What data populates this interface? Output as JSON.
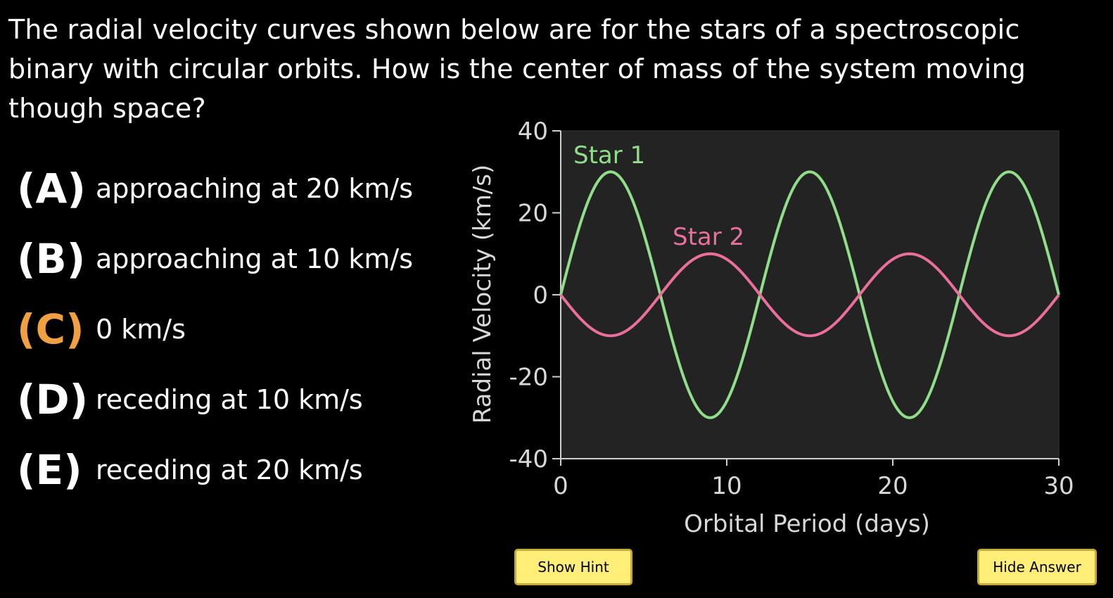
{
  "question": "The radial velocity curves shown below are for the stars of a spectroscopic binary with circular orbits. How is the center of mass of the system moving though space?",
  "choices": [
    {
      "letter": "(A)",
      "text": "approaching at 20 km/s",
      "selected": false
    },
    {
      "letter": "(B)",
      "text": "approaching at 10 km/s",
      "selected": false
    },
    {
      "letter": "(C)",
      "text": "0 km/s",
      "selected": true
    },
    {
      "letter": "(D)",
      "text": "receding at 10 km/s",
      "selected": false
    },
    {
      "letter": "(E)",
      "text": "receding at 20 km/s",
      "selected": false
    }
  ],
  "colors": {
    "selected_letter": "#f0a040",
    "star1": "#90dd8a",
    "star2": "#ea6f9c",
    "plot_bg": "#232323",
    "axis": "#cfcfcf",
    "button_bg": "#ffee77"
  },
  "buttons": {
    "hint": "Show Hint",
    "answer": "Hide Answer"
  },
  "chart_data": {
    "type": "line",
    "xlabel": "Orbital Period (days)",
    "ylabel": "Radial Velocity (km/s)",
    "xlim": [
      0,
      30
    ],
    "ylim": [
      -40,
      40
    ],
    "xticks": [
      0,
      10,
      20,
      30
    ],
    "yticks": [
      -40,
      -20,
      0,
      20,
      40
    ],
    "grid": false,
    "series": [
      {
        "name": "Star 1",
        "amplitude": 30,
        "period_days": 12,
        "phase": "starts at 0, rising",
        "offset": 0,
        "x": [
          0,
          3,
          6,
          9,
          12,
          15,
          18,
          21,
          24,
          27,
          30
        ],
        "y": [
          0,
          30,
          0,
          -30,
          0,
          30,
          0,
          -30,
          0,
          30,
          0
        ]
      },
      {
        "name": "Star 2",
        "amplitude": 10,
        "period_days": 12,
        "phase": "starts at 0, falling",
        "offset": 0,
        "x": [
          0,
          3,
          6,
          9,
          12,
          15,
          18,
          21,
          24,
          27,
          30
        ],
        "y": [
          0,
          -10,
          0,
          10,
          0,
          -10,
          0,
          10,
          0,
          -10,
          0
        ]
      }
    ]
  }
}
